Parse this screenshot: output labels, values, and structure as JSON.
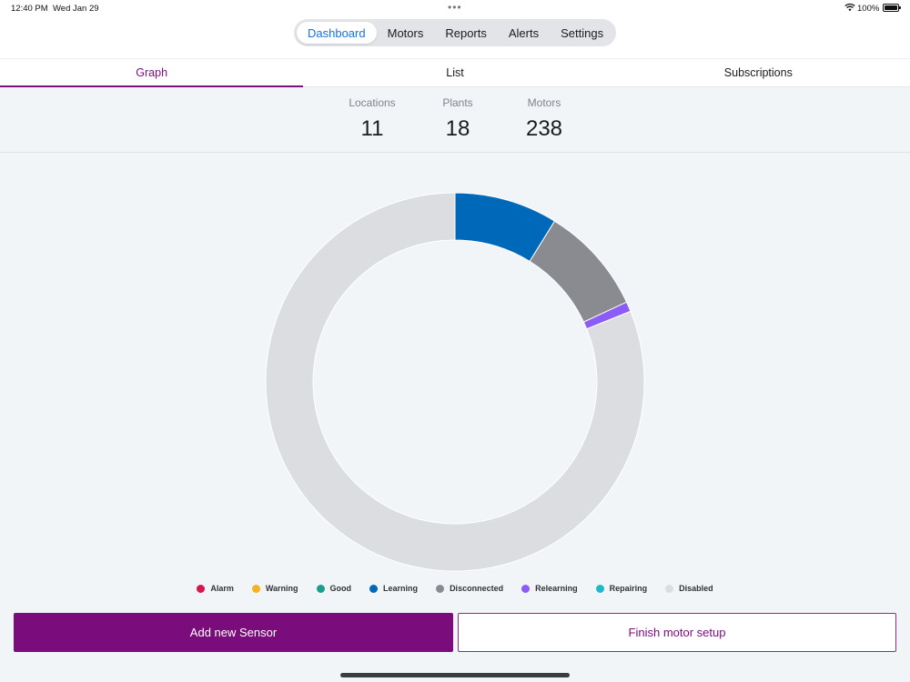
{
  "status_bar": {
    "time": "12:40 PM",
    "date": "Wed Jan 29",
    "battery": "100%",
    "wifi_icon": "wifi-icon",
    "battery_icon": "battery-icon"
  },
  "nav": {
    "segments": [
      "Dashboard",
      "Motors",
      "Reports",
      "Alerts",
      "Settings"
    ],
    "active": "Dashboard"
  },
  "tabs": {
    "items": [
      "Graph",
      "List",
      "Subscriptions"
    ],
    "active": "Graph"
  },
  "stats": [
    {
      "label": "Locations",
      "value": "11"
    },
    {
      "label": "Plants",
      "value": "18"
    },
    {
      "label": "Motors",
      "value": "238"
    }
  ],
  "chart_data": {
    "type": "pie",
    "title": "",
    "categories": [
      "Alarm",
      "Warning",
      "Good",
      "Learning",
      "Disconnected",
      "Relearning",
      "Repairing",
      "Disabled"
    ],
    "values": [
      0,
      0,
      0,
      21,
      22,
      2,
      0,
      193
    ],
    "colors": [
      "#d6174b",
      "#f5b321",
      "#1aa08a",
      "#0068b8",
      "#8a8b90",
      "#8b5cf6",
      "#20b9c9",
      "#dcdde0"
    ],
    "legend_position": "bottom",
    "donut": true
  },
  "buttons": {
    "add_sensor": "Add new Sensor",
    "finish_setup": "Finish motor setup"
  }
}
